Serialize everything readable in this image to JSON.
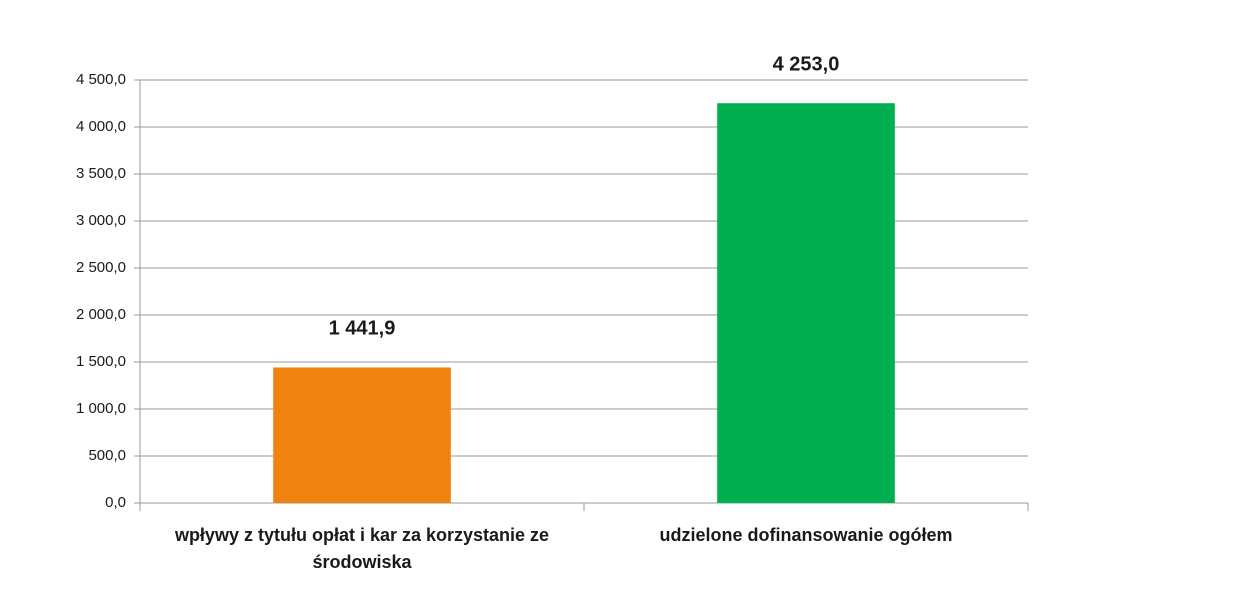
{
  "chart_data": {
    "type": "bar",
    "categories": [
      "wpływy z tytułu opłat i kar za korzystanie ze środowiska",
      "udzielone dofinansowanie ogółem"
    ],
    "values": [
      1441.9,
      4253.0
    ],
    "value_labels": [
      "1 441,9",
      "4 253,0"
    ],
    "colors": [
      "#f0820f",
      "#00b050"
    ],
    "ylim": [
      0,
      4500
    ],
    "yticks": [
      {
        "value": 0,
        "label": "0,0"
      },
      {
        "value": 500,
        "label": "500,0"
      },
      {
        "value": 1000,
        "label": "1 000,0"
      },
      {
        "value": 1500,
        "label": "1 500,0"
      },
      {
        "value": 2000,
        "label": "2 000,0"
      },
      {
        "value": 2500,
        "label": "2 500,0"
      },
      {
        "value": 3000,
        "label": "3 000,0"
      },
      {
        "value": 3500,
        "label": "3 500,0"
      },
      {
        "value": 4000,
        "label": "4 000,0"
      },
      {
        "value": 4500,
        "label": "4 500,0"
      }
    ],
    "grid": true
  }
}
